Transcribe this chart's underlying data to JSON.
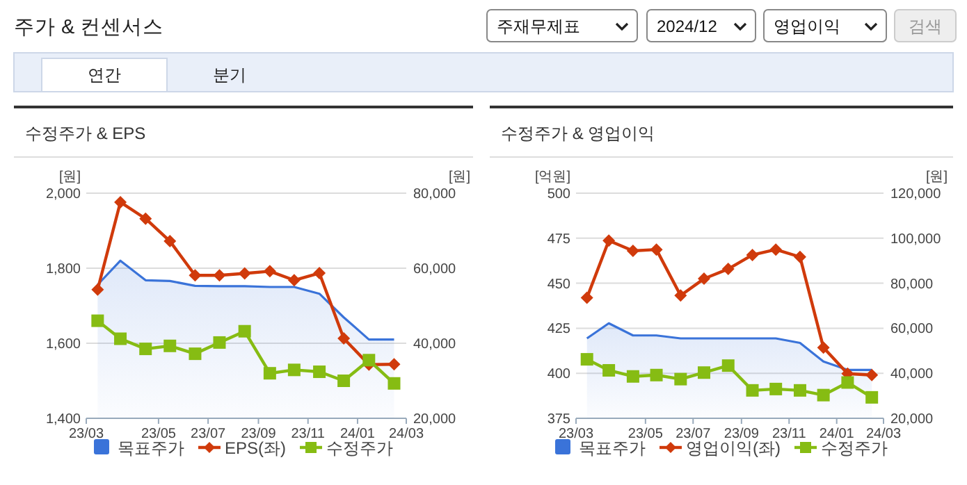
{
  "chart_data": [
    {
      "type": "other",
      "title": "주가 & 컨센서스",
      "annotations": [
        "주재무제표",
        "2024/12",
        "영업이익",
        "검색",
        "연간",
        "분기"
      ]
    },
    {
      "type": "line",
      "title": "수정주가 & EPS",
      "ylabel": "[원]",
      "y2label": "[원]",
      "x": [
        "2023-02-15",
        "2023-03-15",
        "2023-04-15",
        "2023-05-15",
        "2023-06-15",
        "2023-07-15",
        "2023-08-15",
        "2023-09-15",
        "2023-10-15",
        "2023-11-15",
        "2023-12-15",
        "2024-01-15",
        "2024-02-15"
      ],
      "xlim": [
        "2023-02-01",
        "2024-03-01"
      ],
      "xticks": [
        {
          "value": "2023-02-01",
          "label": "23/03"
        },
        {
          "value": "2023-05-01",
          "label": "23/05"
        },
        {
          "value": "2023-07-01",
          "label": "23/07"
        },
        {
          "value": "2023-09-01",
          "label": "23/09"
        },
        {
          "value": "2023-11-01",
          "label": "23/11"
        },
        {
          "value": "2024-01-01",
          "label": "24/01"
        },
        {
          "value": "2024-03-01",
          "label": "24/03"
        }
      ],
      "ylim": [
        1400,
        2000
      ],
      "yticks": [
        {
          "value": 1400,
          "label": "1,400"
        },
        {
          "value": 1600,
          "label": "1,600"
        },
        {
          "value": 1800,
          "label": "1,800"
        },
        {
          "value": 2000,
          "label": "2,000"
        }
      ],
      "y2lim": [
        20000,
        80000
      ],
      "y2ticks": [
        {
          "value": 20000,
          "label": "20,000"
        },
        {
          "value": 40000,
          "label": "40,000"
        },
        {
          "value": 60000,
          "label": "60,000"
        },
        {
          "value": 80000,
          "label": "80,000"
        }
      ],
      "grid": "y",
      "legend": "bottom",
      "series": [
        {
          "name": "목표주가",
          "type": "area",
          "axis": "y2",
          "color": "#3a73d9",
          "values": [
            55600,
            62000,
            56800,
            56600,
            55300,
            55200,
            55200,
            55000,
            55000,
            53200,
            46900,
            41000,
            41000
          ]
        },
        {
          "name": "EPS(좌)",
          "type": "line",
          "marker": "diamond",
          "color": "#d03a0b",
          "values": [
            1743,
            1976,
            1932,
            1872,
            1781,
            1781,
            1786,
            1792,
            1768,
            1787,
            1613,
            1543,
            1544
          ]
        },
        {
          "name": "수정주가",
          "type": "line",
          "axis": "y2",
          "marker": "square",
          "color": "#86bc13",
          "values": [
            46000,
            41200,
            38500,
            39300,
            37200,
            40200,
            43200,
            32000,
            32900,
            32400,
            30000,
            35500,
            29300
          ]
        }
      ]
    },
    {
      "type": "line",
      "title": "수정주가 & 영업이익",
      "ylabel": "[억원]",
      "y2label": "[원]",
      "x": [
        "2023-02-15",
        "2023-03-15",
        "2023-04-15",
        "2023-05-15",
        "2023-06-15",
        "2023-07-15",
        "2023-08-15",
        "2023-09-15",
        "2023-10-15",
        "2023-11-15",
        "2023-12-15",
        "2024-01-15",
        "2024-02-15"
      ],
      "xlim": [
        "2023-02-01",
        "2024-03-01"
      ],
      "xticks": [
        {
          "value": "2023-02-01",
          "label": "23/03"
        },
        {
          "value": "2023-05-01",
          "label": "23/05"
        },
        {
          "value": "2023-07-01",
          "label": "23/07"
        },
        {
          "value": "2023-09-01",
          "label": "23/09"
        },
        {
          "value": "2023-11-01",
          "label": "23/11"
        },
        {
          "value": "2024-01-01",
          "label": "24/01"
        },
        {
          "value": "2024-03-01",
          "label": "24/03"
        }
      ],
      "ylim": [
        375,
        500
      ],
      "yticks": [
        375,
        400,
        425,
        450,
        475,
        500
      ],
      "y2lim": [
        20000,
        120000
      ],
      "y2ticks": [
        {
          "value": 20000,
          "label": "20,000"
        },
        {
          "value": 40000,
          "label": "40,000"
        },
        {
          "value": 60000,
          "label": "60,000"
        },
        {
          "value": 80000,
          "label": "80,000"
        },
        {
          "value": 100000,
          "label": "100,000"
        },
        {
          "value": 120000,
          "label": "120,000"
        }
      ],
      "grid": "y",
      "legend": "bottom",
      "series": [
        {
          "name": "목표주가",
          "type": "area",
          "axis": "y2",
          "color": "#3a73d9",
          "values": [
            55500,
            62200,
            56800,
            56800,
            55500,
            55500,
            55500,
            55500,
            55500,
            53500,
            45200,
            41500,
            41500
          ]
        },
        {
          "name": "영업이익(좌)",
          "type": "line",
          "marker": "diamond",
          "color": "#d03a0b",
          "values": [
            441.9,
            473.7,
            468.0,
            468.7,
            443.2,
            452.5,
            457.9,
            465.7,
            468.7,
            464.6,
            414.3,
            399.8,
            399.0
          ]
        },
        {
          "name": "수정주가",
          "type": "line",
          "axis": "y2",
          "marker": "square",
          "color": "#86bc13",
          "values": [
            46200,
            41300,
            38600,
            39200,
            37400,
            40300,
            43400,
            32400,
            33000,
            32400,
            30300,
            35900,
            29300
          ]
        }
      ]
    }
  ]
}
